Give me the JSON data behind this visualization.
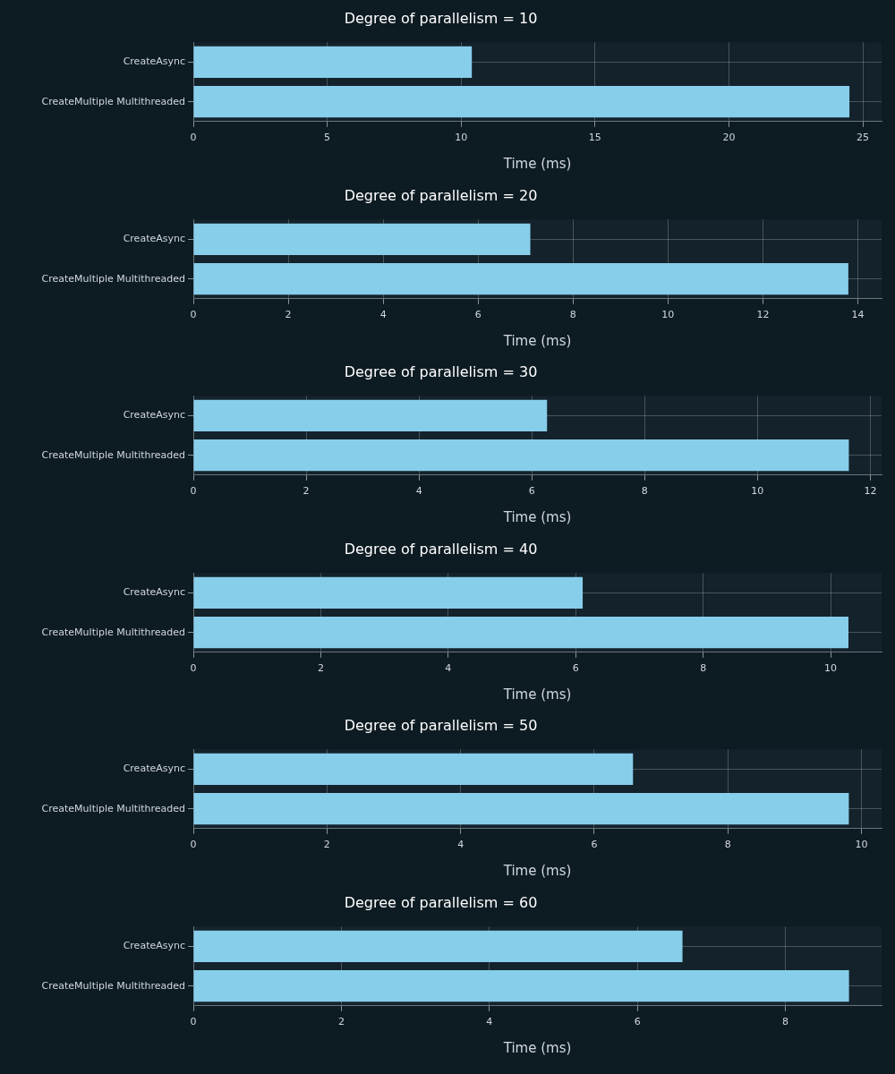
{
  "chart_data": [
    {
      "type": "bar",
      "orientation": "horizontal",
      "title": "Degree of parallelism = 10",
      "xlabel": "Time (ms)",
      "categories": [
        "CreateAsync",
        "CreateMultiple Multithreaded"
      ],
      "values": [
        10.4,
        24.5
      ],
      "color": "#87ceeb",
      "xlim": [
        0,
        25.7
      ],
      "xticks": [
        0,
        5,
        10,
        15,
        20,
        25
      ],
      "grid": true
    },
    {
      "type": "bar",
      "orientation": "horizontal",
      "title": "Degree of parallelism = 20",
      "xlabel": "Time (ms)",
      "categories": [
        "CreateAsync",
        "CreateMultiple Multithreaded"
      ],
      "values": [
        7.1,
        13.8
      ],
      "color": "#87ceeb",
      "xlim": [
        0,
        14.5
      ],
      "xticks": [
        0,
        2,
        4,
        6,
        8,
        10,
        12,
        14
      ],
      "grid": true
    },
    {
      "type": "bar",
      "orientation": "horizontal",
      "title": "Degree of parallelism = 30",
      "xlabel": "Time (ms)",
      "categories": [
        "CreateAsync",
        "CreateMultiple Multithreaded"
      ],
      "values": [
        6.27,
        11.62
      ],
      "color": "#87ceeb",
      "xlim": [
        0,
        12.2
      ],
      "xticks": [
        0,
        2,
        4,
        6,
        8,
        10,
        12
      ],
      "grid": true
    },
    {
      "type": "bar",
      "orientation": "horizontal",
      "title": "Degree of parallelism = 40",
      "xlabel": "Time (ms)",
      "categories": [
        "CreateAsync",
        "CreateMultiple Multithreaded"
      ],
      "values": [
        6.11,
        10.28
      ],
      "color": "#87ceeb",
      "xlim": [
        0,
        10.8
      ],
      "xticks": [
        0,
        2,
        4,
        6,
        8,
        10
      ],
      "grid": true
    },
    {
      "type": "bar",
      "orientation": "horizontal",
      "title": "Degree of parallelism = 50",
      "xlabel": "Time (ms)",
      "categories": [
        "CreateAsync",
        "CreateMultiple Multithreaded"
      ],
      "values": [
        6.58,
        9.81
      ],
      "color": "#87ceeb",
      "xlim": [
        0,
        10.3
      ],
      "xticks": [
        0,
        2,
        4,
        6,
        8,
        10
      ],
      "grid": true
    },
    {
      "type": "bar",
      "orientation": "horizontal",
      "title": "Degree of parallelism = 60",
      "xlabel": "Time (ms)",
      "categories": [
        "CreateAsync",
        "CreateMultiple Multithreaded"
      ],
      "values": [
        6.61,
        8.86
      ],
      "color": "#87ceeb",
      "xlim": [
        0,
        9.3
      ],
      "xticks": [
        0,
        2,
        4,
        6,
        8
      ],
      "grid": true
    }
  ]
}
